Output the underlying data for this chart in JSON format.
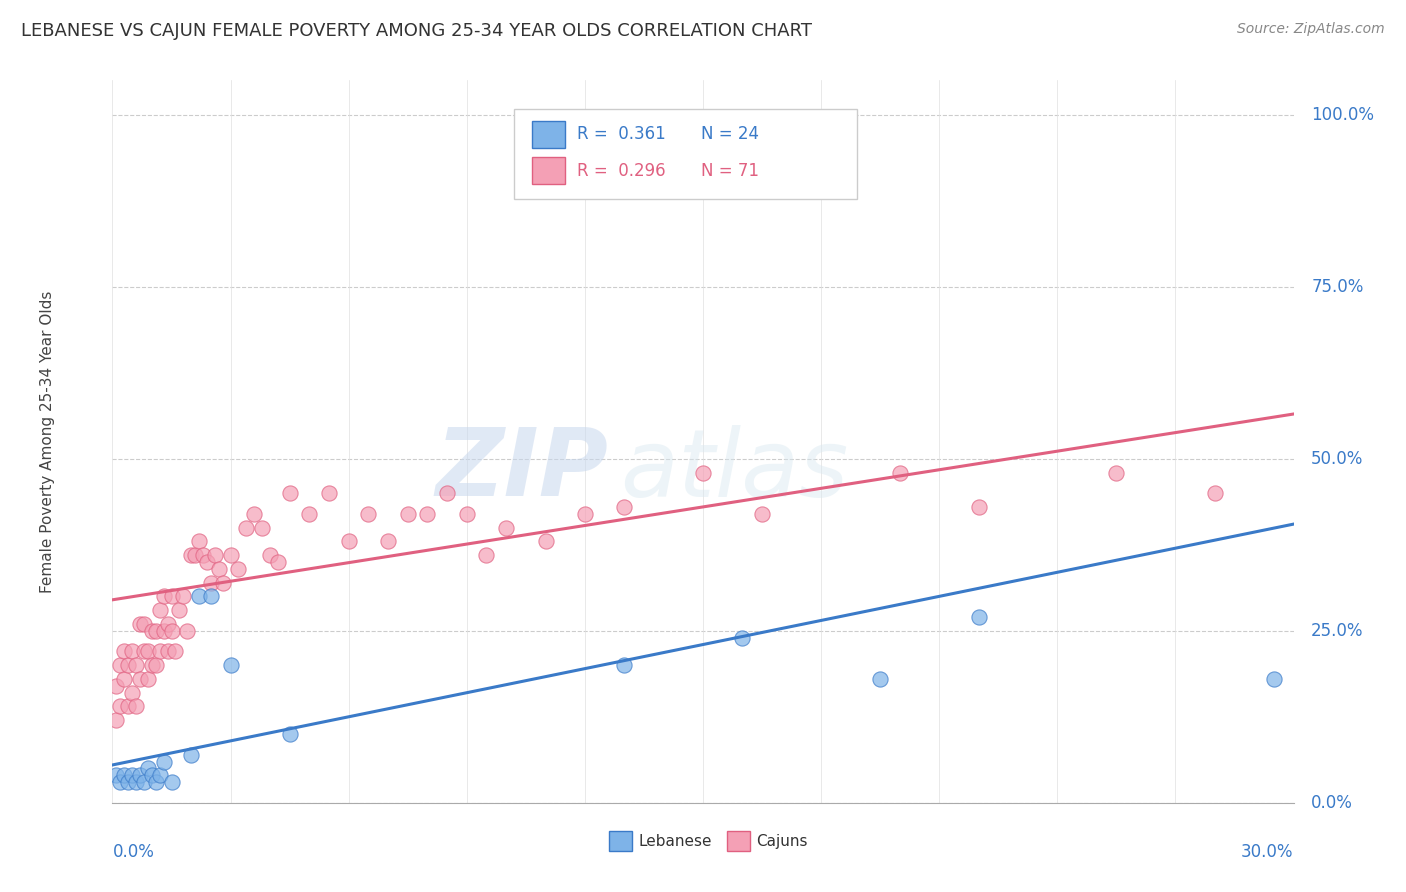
{
  "title": "LEBANESE VS CAJUN FEMALE POVERTY AMONG 25-34 YEAR OLDS CORRELATION CHART",
  "source": "Source: ZipAtlas.com",
  "ylabel": "Female Poverty Among 25-34 Year Olds",
  "xlim": [
    0.0,
    0.3
  ],
  "ylim": [
    0.0,
    1.05
  ],
  "lebanese_color": "#7EB3E8",
  "cajun_color": "#F4A0B5",
  "lebanese_line_color": "#3A7AC8",
  "cajun_line_color": "#E06080",
  "watermark_zip": "ZIP",
  "watermark_atlas": "atlas",
  "leb_x": [
    0.001,
    0.002,
    0.003,
    0.004,
    0.005,
    0.006,
    0.007,
    0.008,
    0.009,
    0.01,
    0.011,
    0.012,
    0.013,
    0.015,
    0.02,
    0.022,
    0.025,
    0.03,
    0.045,
    0.13,
    0.16,
    0.195,
    0.22,
    0.295
  ],
  "leb_y": [
    0.04,
    0.03,
    0.04,
    0.03,
    0.04,
    0.03,
    0.04,
    0.03,
    0.05,
    0.04,
    0.03,
    0.04,
    0.06,
    0.03,
    0.07,
    0.3,
    0.3,
    0.2,
    0.1,
    0.2,
    0.24,
    0.18,
    0.27,
    0.18
  ],
  "caj_x": [
    0.001,
    0.001,
    0.002,
    0.002,
    0.003,
    0.003,
    0.004,
    0.004,
    0.005,
    0.005,
    0.006,
    0.006,
    0.007,
    0.007,
    0.008,
    0.008,
    0.009,
    0.009,
    0.01,
    0.01,
    0.011,
    0.011,
    0.012,
    0.012,
    0.013,
    0.013,
    0.014,
    0.014,
    0.015,
    0.015,
    0.016,
    0.017,
    0.018,
    0.019,
    0.02,
    0.021,
    0.022,
    0.023,
    0.024,
    0.025,
    0.026,
    0.027,
    0.028,
    0.03,
    0.032,
    0.034,
    0.036,
    0.038,
    0.04,
    0.042,
    0.045,
    0.05,
    0.055,
    0.06,
    0.065,
    0.07,
    0.075,
    0.08,
    0.085,
    0.09,
    0.095,
    0.1,
    0.11,
    0.12,
    0.13,
    0.15,
    0.165,
    0.2,
    0.22,
    0.255,
    0.28
  ],
  "caj_y": [
    0.17,
    0.12,
    0.14,
    0.2,
    0.18,
    0.22,
    0.14,
    0.2,
    0.16,
    0.22,
    0.14,
    0.2,
    0.26,
    0.18,
    0.22,
    0.26,
    0.18,
    0.22,
    0.2,
    0.25,
    0.2,
    0.25,
    0.22,
    0.28,
    0.25,
    0.3,
    0.26,
    0.22,
    0.25,
    0.3,
    0.22,
    0.28,
    0.3,
    0.25,
    0.36,
    0.36,
    0.38,
    0.36,
    0.35,
    0.32,
    0.36,
    0.34,
    0.32,
    0.36,
    0.34,
    0.4,
    0.42,
    0.4,
    0.36,
    0.35,
    0.45,
    0.42,
    0.45,
    0.38,
    0.42,
    0.38,
    0.42,
    0.42,
    0.45,
    0.42,
    0.36,
    0.4,
    0.38,
    0.42,
    0.43,
    0.48,
    0.42,
    0.48,
    0.43,
    0.48,
    0.45
  ],
  "leb_line_x0": 0.0,
  "leb_line_y0": 0.055,
  "leb_line_x1": 0.3,
  "leb_line_y1": 0.405,
  "caj_line_x0": 0.0,
  "caj_line_y0": 0.295,
  "caj_line_x1": 0.3,
  "caj_line_y1": 0.565
}
